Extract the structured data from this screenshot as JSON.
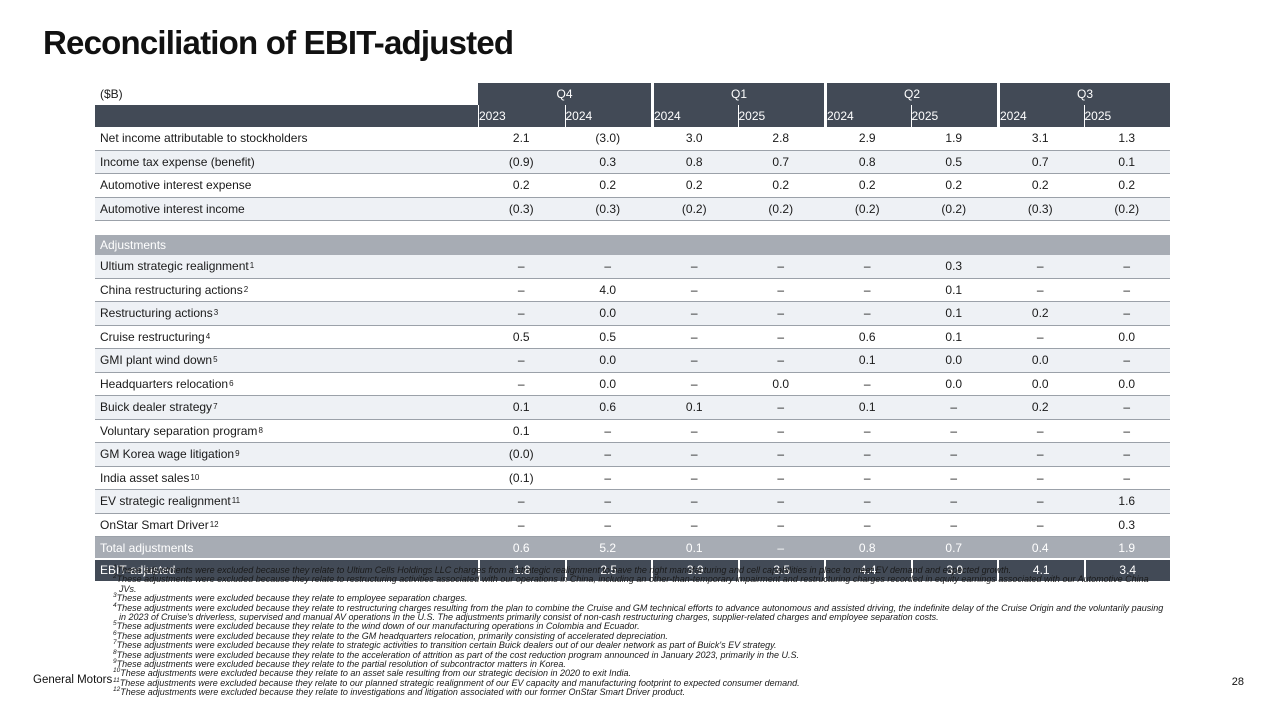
{
  "slide": {
    "title": "Reconciliation of EBIT-adjusted",
    "footer_left": "General Motors",
    "page_number": "28"
  },
  "colors": {
    "header_dark": "#424A56",
    "band_gray": "#A7ACB4",
    "row_alt": "#EEF1F5",
    "row_border": "#9BA1A9"
  },
  "table": {
    "unit_label": "($B)",
    "quarter_groups": [
      {
        "label": "Q4",
        "years": [
          "2023",
          "2024"
        ]
      },
      {
        "label": "Q1",
        "years": [
          "2024",
          "2025"
        ]
      },
      {
        "label": "Q2",
        "years": [
          "2024",
          "2025"
        ]
      },
      {
        "label": "Q3",
        "years": [
          "2024",
          "2025"
        ]
      }
    ],
    "base_rows": [
      {
        "label": "Net income attributable to stockholders",
        "sup": "",
        "values": [
          "2.1",
          "(3.0)",
          "3.0",
          "2.8",
          "2.9",
          "1.9",
          "3.1",
          "1.3"
        ]
      },
      {
        "label": "Income tax expense (benefit)",
        "sup": "",
        "values": [
          "(0.9)",
          "0.3",
          "0.8",
          "0.7",
          "0.8",
          "0.5",
          "0.7",
          "0.1"
        ]
      },
      {
        "label": "Automotive interest expense",
        "sup": "",
        "values": [
          "0.2",
          "0.2",
          "0.2",
          "0.2",
          "0.2",
          "0.2",
          "0.2",
          "0.2"
        ]
      },
      {
        "label": "Automotive interest income",
        "sup": "",
        "values": [
          "(0.3)",
          "(0.3)",
          "(0.2)",
          "(0.2)",
          "(0.2)",
          "(0.2)",
          "(0.3)",
          "(0.2)"
        ]
      }
    ],
    "adjustments_header": "Adjustments",
    "adjustment_rows": [
      {
        "label": "Ultium strategic realignment",
        "sup": "1",
        "values": [
          "–",
          "–",
          "–",
          "–",
          "–",
          "0.3",
          "–",
          "–"
        ]
      },
      {
        "label": "China restructuring actions",
        "sup": "2",
        "values": [
          "–",
          "4.0",
          "–",
          "–",
          "–",
          "0.1",
          "–",
          "–"
        ]
      },
      {
        "label": "Restructuring actions",
        "sup": "3",
        "values": [
          "–",
          "0.0",
          "–",
          "–",
          "–",
          "0.1",
          "0.2",
          "–"
        ]
      },
      {
        "label": "Cruise restructuring",
        "sup": "4",
        "values": [
          "0.5",
          "0.5",
          "–",
          "–",
          "0.6",
          "0.1",
          "–",
          "0.0"
        ]
      },
      {
        "label": "GMI plant wind down",
        "sup": "5",
        "values": [
          "–",
          "0.0",
          "–",
          "–",
          "0.1",
          "0.0",
          "0.0",
          "–"
        ]
      },
      {
        "label": "Headquarters relocation",
        "sup": "6",
        "values": [
          "–",
          "0.0",
          "–",
          "0.0",
          "–",
          "0.0",
          "0.0",
          "0.0"
        ]
      },
      {
        "label": "Buick dealer strategy",
        "sup": "7",
        "values": [
          "0.1",
          "0.6",
          "0.1",
          "–",
          "0.1",
          "–",
          "0.2",
          "–"
        ]
      },
      {
        "label": "Voluntary separation program",
        "sup": "8",
        "values": [
          "0.1",
          "–",
          "–",
          "–",
          "–",
          "–",
          "–",
          "–"
        ]
      },
      {
        "label": "GM Korea wage litigation",
        "sup": "9",
        "values": [
          "(0.0)",
          "–",
          "–",
          "–",
          "–",
          "–",
          "–",
          "–"
        ]
      },
      {
        "label": "India asset sales",
        "sup": "10",
        "values": [
          "(0.1)",
          "–",
          "–",
          "–",
          "–",
          "–",
          "–",
          "–"
        ]
      },
      {
        "label": "EV strategic realignment",
        "sup": "11",
        "values": [
          "–",
          "–",
          "–",
          "–",
          "–",
          "–",
          "–",
          "1.6"
        ]
      },
      {
        "label": "OnStar Smart Driver",
        "sup": "12",
        "values": [
          "–",
          "–",
          "–",
          "–",
          "–",
          "–",
          "–",
          "0.3"
        ]
      }
    ],
    "total_row": {
      "label": "Total adjustments",
      "sup": "",
      "values": [
        "0.6",
        "5.2",
        "0.1",
        "–",
        "0.8",
        "0.7",
        "0.4",
        "1.9"
      ]
    },
    "ebit_row": {
      "label": "EBIT-adjusted",
      "sup": "",
      "values": [
        "1.8",
        "2.5",
        "3.9",
        "3.5",
        "4.4",
        "3.0",
        "4.1",
        "3.4"
      ]
    }
  },
  "footnotes": [
    {
      "marker": "1",
      "text": "These adjustments were excluded because they relate to Ultium Cells Holdings LLC charges from a strategic realignment to have the right manufacturing and cell capabilities in place to meet EV demand and expected growth."
    },
    {
      "marker": "2",
      "text": "These adjustments were excluded because they relate to restructuring activities associated with our operations in China, including an other-than-temporary impairment and restructuring charges recorded in equity earnings associated with our Automotive China JVs."
    },
    {
      "marker": "3",
      "text": "These adjustments were excluded because they relate to employee separation charges."
    },
    {
      "marker": "4",
      "text": "These adjustments were excluded because they relate to restructuring charges resulting from the plan to combine the Cruise and GM technical efforts to advance autonomous and assisted driving, the indefinite delay of the Cruise Origin and the voluntarily pausing in 2023 of Cruise's driverless, supervised and manual AV operations in the U.S. The adjustments primarily consist of non-cash restructuring charges, supplier-related charges and employee separation costs."
    },
    {
      "marker": "5",
      "text": "These adjustments were excluded because they relate to the wind down of our manufacturing operations in Colombia and Ecuador."
    },
    {
      "marker": "6",
      "text": "These adjustments were excluded because they relate to the GM headquarters relocation, primarily consisting of accelerated depreciation."
    },
    {
      "marker": "7",
      "text": "These adjustments were excluded because they relate to strategic activities to transition certain Buick dealers out of our dealer network as part of Buick's EV strategy."
    },
    {
      "marker": "8",
      "text": "These adjustments were excluded because they relate to the acceleration of attrition as part of the cost reduction program announced in January 2023, primarily in the U.S."
    },
    {
      "marker": "9",
      "text": "These adjustments were excluded because they relate to the partial resolution of subcontractor matters in Korea."
    },
    {
      "marker": "10",
      "text": "These adjustments were excluded because they relate to an asset sale resulting from our strategic decision in 2020 to exit India."
    },
    {
      "marker": "11",
      "text": "These adjustments were excluded because they relate to our planned strategic realignment of our EV capacity and manufacturing footprint to expected consumer demand."
    },
    {
      "marker": "12",
      "text": "These adjustments were excluded because they relate to investigations and litigation associated with our former OnStar Smart Driver product."
    }
  ]
}
